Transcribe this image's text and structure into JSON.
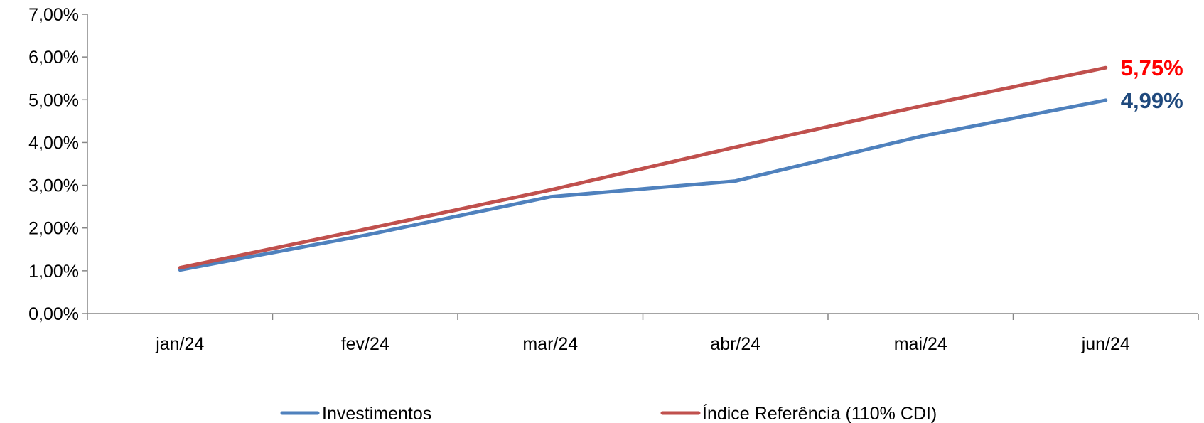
{
  "chart_data": {
    "type": "line",
    "categories": [
      "jan/24",
      "fev/24",
      "mar/24",
      "abr/24",
      "mai/24",
      "jun/24"
    ],
    "series": [
      {
        "name": "Investimentos",
        "color": "#4F81BD",
        "values": [
          1.02,
          1.83,
          2.73,
          3.1,
          4.14,
          4.99
        ],
        "end_label": "4,99%",
        "end_label_color": "#1F497D"
      },
      {
        "name": "Índice Referência (110% CDI)",
        "color": "#C0504D",
        "values": [
          1.07,
          1.97,
          2.89,
          3.89,
          4.85,
          5.75
        ],
        "end_label": "5,75%",
        "end_label_color": "#FF0000"
      }
    ],
    "y_ticks": [
      "0,00%",
      "1,00%",
      "2,00%",
      "3,00%",
      "4,00%",
      "5,00%",
      "6,00%",
      "7,00%"
    ],
    "ylim": [
      0,
      7
    ],
    "grid": false,
    "legend_position": "bottom"
  }
}
